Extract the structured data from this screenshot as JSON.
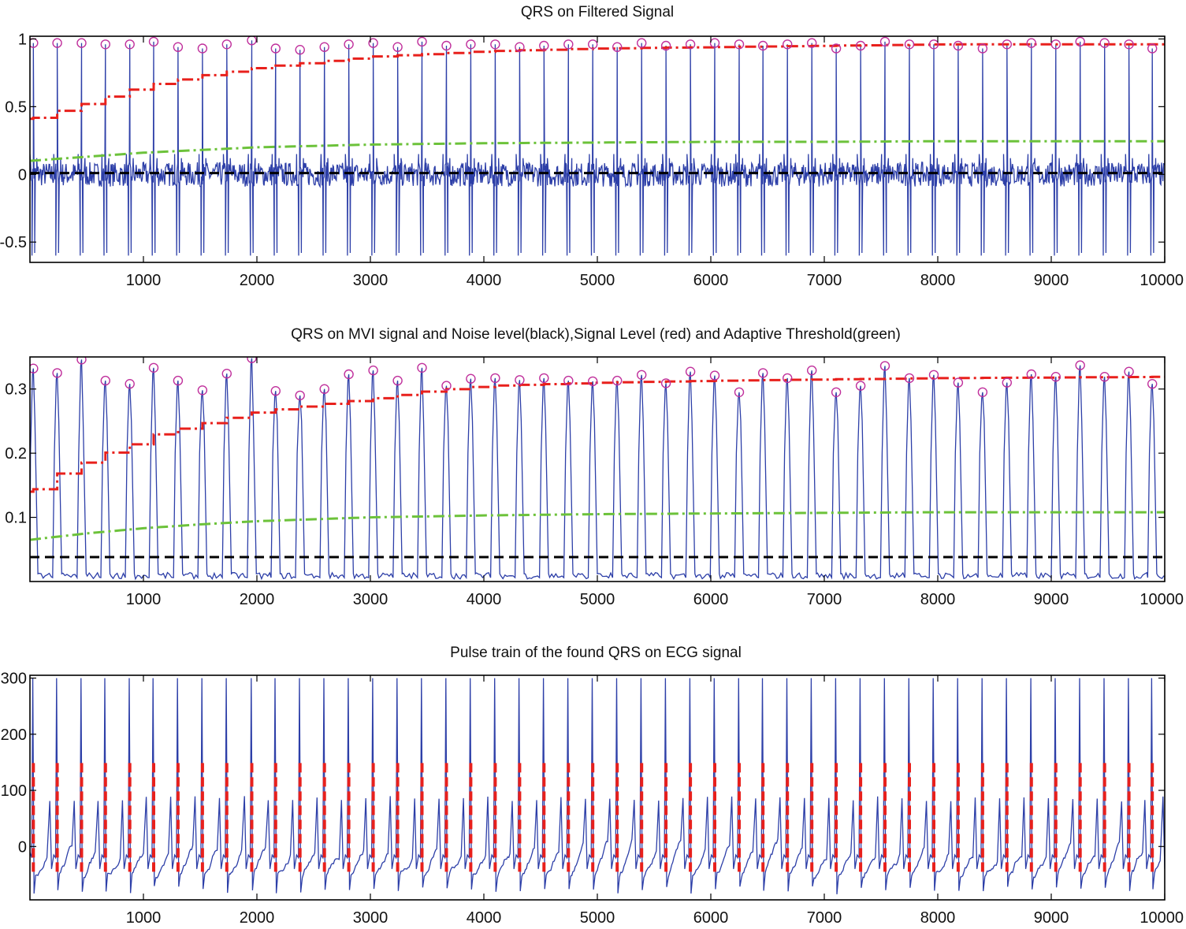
{
  "figure": {
    "background": "#ffffff"
  },
  "colors": {
    "signal": "#2d3fa8",
    "signal_level": "#e8201c",
    "threshold": "#6cc23a",
    "noise_level": "#000000",
    "peak_marker": "#c0309c",
    "pulse": "#e8201c"
  },
  "chart_data": [
    {
      "type": "line",
      "title": "QRS on Filtered Signal",
      "xlim": [
        0,
        10000
      ],
      "ylim": [
        -0.65,
        1.02
      ],
      "xticks": [
        1000,
        2000,
        3000,
        4000,
        5000,
        6000,
        7000,
        8000,
        9000,
        10000
      ],
      "yticks": [
        -0.5,
        0,
        0.5,
        1
      ],
      "ytick_labels": [
        "-0.5",
        "0",
        "0.5",
        "1"
      ],
      "peak_x": [
        30,
        240,
        455,
        665,
        880,
        1090,
        1305,
        1520,
        1735,
        1955,
        2165,
        2380,
        2595,
        2810,
        3025,
        3240,
        3455,
        3670,
        3885,
        4100,
        4315,
        4530,
        4745,
        4960,
        5175,
        5390,
        5605,
        5820,
        6035,
        6250,
        6460,
        6675,
        6890,
        7105,
        7320,
        7535,
        7750,
        7965,
        8180,
        8395,
        8610,
        8825,
        9040,
        9255,
        9470,
        9685,
        9890
      ],
      "peak_y": [
        0.97,
        0.97,
        0.97,
        0.96,
        0.96,
        0.98,
        0.94,
        0.93,
        0.96,
        0.99,
        0.93,
        0.92,
        0.94,
        0.96,
        0.97,
        0.94,
        0.98,
        0.95,
        0.96,
        0.96,
        0.94,
        0.95,
        0.96,
        0.96,
        0.94,
        0.97,
        0.95,
        0.96,
        0.97,
        0.96,
        0.95,
        0.96,
        0.97,
        0.93,
        0.95,
        0.98,
        0.96,
        0.96,
        0.95,
        0.93,
        0.96,
        0.97,
        0.96,
        0.98,
        0.97,
        0.96,
        0.93
      ],
      "series": [
        {
          "name": "Filtered signal",
          "style": "solid",
          "x": [
            0,
            10000
          ],
          "values": [
            0,
            0
          ]
        },
        {
          "name": "Signal Level",
          "style": "dashdot",
          "x": [
            0,
            200,
            500,
            800,
            1100,
            1500,
            2000,
            2500,
            3000,
            3500,
            4000,
            5000,
            6000,
            7000,
            8000,
            9000,
            10000
          ],
          "values": [
            0.41,
            0.46,
            0.53,
            0.61,
            0.67,
            0.73,
            0.79,
            0.83,
            0.87,
            0.89,
            0.91,
            0.93,
            0.94,
            0.95,
            0.96,
            0.96,
            0.96
          ]
        },
        {
          "name": "Adaptive Threshold",
          "style": "dashdot",
          "x": [
            0,
            500,
            1000,
            1500,
            2000,
            3000,
            4000,
            5000,
            6000,
            7000,
            8000,
            9000,
            10000
          ],
          "values": [
            0.1,
            0.13,
            0.16,
            0.18,
            0.2,
            0.22,
            0.23,
            0.235,
            0.24,
            0.24,
            0.245,
            0.245,
            0.245
          ]
        },
        {
          "name": "Noise level",
          "style": "dashed",
          "x": [
            0,
            10000
          ],
          "values": [
            0.01,
            0.01
          ]
        }
      ]
    },
    {
      "type": "line",
      "title": "QRS on MVI signal and Noise level(black),Signal Level (red) and Adaptive Threshold(green)",
      "xlim": [
        0,
        10000
      ],
      "ylim": [
        0.0,
        0.35
      ],
      "xticks": [
        1000,
        2000,
        3000,
        4000,
        5000,
        6000,
        7000,
        8000,
        9000,
        10000
      ],
      "yticks": [
        0.1,
        0.2,
        0.3
      ],
      "ytick_labels": [
        "0.1",
        "0.2",
        "0.3"
      ],
      "peak_x": [
        30,
        240,
        455,
        665,
        880,
        1090,
        1305,
        1520,
        1735,
        1955,
        2165,
        2380,
        2595,
        2810,
        3025,
        3240,
        3455,
        3670,
        3885,
        4100,
        4315,
        4530,
        4745,
        4960,
        5175,
        5390,
        5605,
        5820,
        6035,
        6250,
        6460,
        6675,
        6890,
        7105,
        7320,
        7535,
        7750,
        7965,
        8180,
        8395,
        8610,
        8825,
        9040,
        9255,
        9470,
        9685,
        9890
      ],
      "peak_y": [
        0.332,
        0.325,
        0.346,
        0.313,
        0.308,
        0.333,
        0.313,
        0.298,
        0.324,
        0.348,
        0.297,
        0.29,
        0.3,
        0.323,
        0.329,
        0.313,
        0.333,
        0.305,
        0.316,
        0.317,
        0.314,
        0.317,
        0.313,
        0.312,
        0.313,
        0.322,
        0.309,
        0.327,
        0.321,
        0.295,
        0.325,
        0.317,
        0.329,
        0.295,
        0.305,
        0.336,
        0.317,
        0.322,
        0.31,
        0.295,
        0.31,
        0.323,
        0.319,
        0.337,
        0.319,
        0.327,
        0.308
      ],
      "series": [
        {
          "name": "MVI signal",
          "style": "solid",
          "x": [
            0,
            10000
          ],
          "values": [
            0.003,
            0.003
          ]
        },
        {
          "name": "Signal Level",
          "style": "dashdot",
          "x": [
            0,
            200,
            450,
            650,
            900,
            1100,
            1350,
            1600,
            2000,
            2500,
            3000,
            3500,
            4000,
            5000,
            6000,
            7000,
            8000,
            9000,
            10000
          ],
          "values": [
            0.14,
            0.165,
            0.185,
            0.2,
            0.215,
            0.23,
            0.24,
            0.25,
            0.265,
            0.275,
            0.285,
            0.297,
            0.305,
            0.31,
            0.313,
            0.315,
            0.317,
            0.318,
            0.319
          ]
        },
        {
          "name": "Adaptive Threshold",
          "style": "dashdot",
          "x": [
            0,
            500,
            1000,
            1500,
            2000,
            3000,
            4000,
            5000,
            6000,
            7000,
            8000,
            9000,
            10000
          ],
          "values": [
            0.065,
            0.075,
            0.083,
            0.089,
            0.094,
            0.1,
            0.103,
            0.105,
            0.106,
            0.107,
            0.108,
            0.108,
            0.108
          ]
        },
        {
          "name": "Noise level",
          "style": "dashed",
          "x": [
            0,
            10000
          ],
          "values": [
            0.038,
            0.038
          ]
        }
      ]
    },
    {
      "type": "line",
      "title": "Pulse train of the found QRS on ECG signal",
      "xlim": [
        0,
        10000
      ],
      "ylim": [
        -95,
        305
      ],
      "xticks": [
        1000,
        2000,
        3000,
        4000,
        5000,
        6000,
        7000,
        8000,
        9000,
        10000
      ],
      "yticks": [
        0,
        100,
        200,
        300
      ],
      "ytick_labels": [
        "0",
        "100",
        "200",
        "300"
      ],
      "pulse_x": [
        30,
        240,
        455,
        665,
        880,
        1090,
        1305,
        1520,
        1735,
        1955,
        2165,
        2380,
        2595,
        2810,
        3025,
        3240,
        3455,
        3670,
        3885,
        4100,
        4315,
        4530,
        4745,
        4960,
        5175,
        5390,
        5605,
        5820,
        6035,
        6250,
        6460,
        6675,
        6890,
        7105,
        7320,
        7535,
        7750,
        7965,
        8180,
        8395,
        8610,
        8825,
        9040,
        9255,
        9470,
        9685,
        9890
      ],
      "pulse_low": -45,
      "pulse_high": 150,
      "ecg_r_peak": 300,
      "ecg_s_trough": -85,
      "series": [
        {
          "name": "ECG signal",
          "style": "solid",
          "x": [
            0,
            10000
          ],
          "values": [
            0,
            0
          ]
        },
        {
          "name": "QRS pulse train",
          "style": "dashed",
          "x": [
            0,
            10000
          ],
          "values": [
            -45,
            150
          ]
        }
      ]
    }
  ]
}
